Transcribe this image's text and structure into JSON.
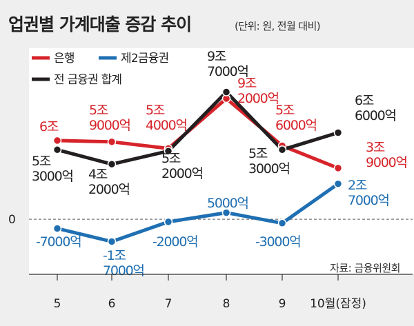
{
  "title": "업권별 가계대출 증감 추이",
  "subtitle": "(단위: 원, 전월 대비)",
  "source": "자료: 금융위원회",
  "chart_data": {
    "type": "line",
    "categories": [
      "5",
      "6",
      "7",
      "8",
      "9",
      "10월(잠정)"
    ],
    "zero_label": "0",
    "ylim": [
      -2.2,
      10.2
    ],
    "series": [
      {
        "name": "은행",
        "color": "#d6242a",
        "values": [
          6.0,
          5.9,
          5.4,
          9.2,
          5.6,
          3.9
        ],
        "labels": [
          [
            "6조"
          ],
          [
            "5조",
            "9000억"
          ],
          [
            "5조",
            "4000억"
          ],
          [
            "9조",
            "2000억"
          ],
          [
            "5조",
            "6000억"
          ],
          [
            "3조",
            "9000억"
          ]
        ]
      },
      {
        "name": "제2금융권",
        "color": "#1f6fb3",
        "values": [
          -0.7,
          -1.7,
          -0.2,
          0.5,
          -0.3,
          2.7
        ],
        "labels": [
          [
            "-7000억"
          ],
          [
            "-1조",
            "7000억"
          ],
          [
            "-2000억"
          ],
          [
            "5000억"
          ],
          [
            "-3000억"
          ],
          [
            "2조",
            "7000억"
          ]
        ]
      },
      {
        "name": "전 금융권 합계",
        "color": "#231f20",
        "values": [
          5.3,
          4.2,
          5.2,
          9.7,
          5.3,
          6.6
        ],
        "labels": [
          [
            "5조",
            "3000억"
          ],
          [
            "4조",
            "2000억"
          ],
          [
            "5조",
            "2000억"
          ],
          [
            "9조",
            "7000억"
          ],
          [
            "5조",
            "3000억"
          ],
          [
            "6조",
            "6000억"
          ]
        ]
      }
    ]
  }
}
